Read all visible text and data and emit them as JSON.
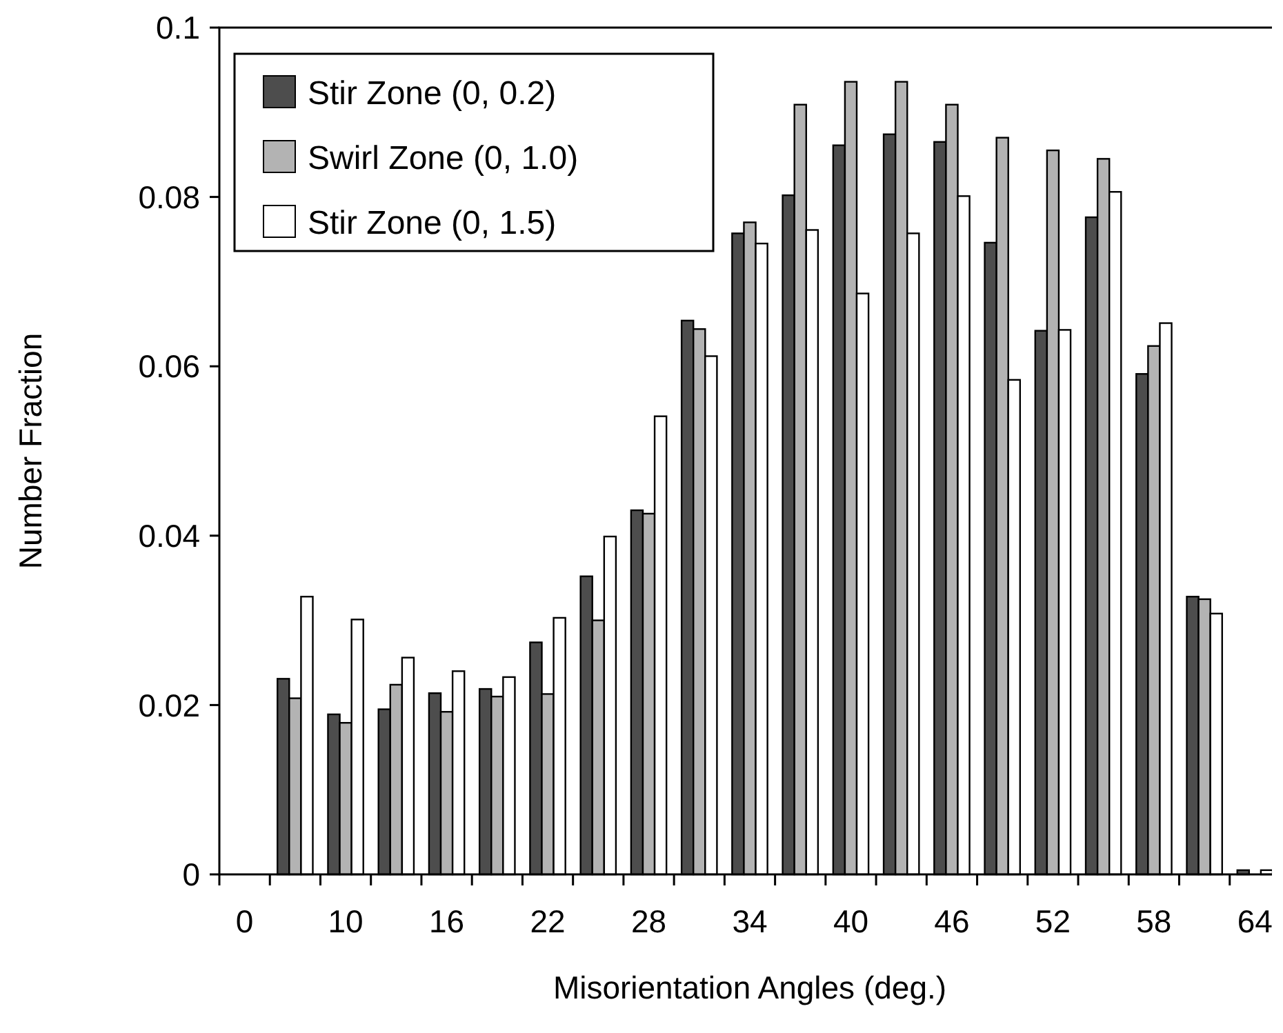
{
  "chart_data": {
    "type": "bar",
    "xlabel": "Misorientation Angles (deg.)",
    "ylabel": "Number Fraction",
    "categories": [
      "0",
      null,
      "10",
      null,
      "16",
      null,
      "22",
      null,
      "28",
      null,
      "34",
      null,
      "40",
      null,
      "46",
      null,
      "52",
      null,
      "58",
      null,
      "64"
    ],
    "series": [
      {
        "name": "Stir Zone (0, 0.2)",
        "color": "#4d4d4d",
        "values": [
          null,
          0.0231,
          0.0189,
          0.0195,
          0.0214,
          0.0219,
          0.0274,
          0.0352,
          0.043,
          0.0654,
          0.0757,
          0.0802,
          0.0861,
          0.0874,
          0.0865,
          0.0746,
          0.0642,
          0.0776,
          0.0591,
          0.0328,
          0.0005
        ]
      },
      {
        "name": "Swirl Zone (0, 1.0)",
        "color": "#b3b3b3",
        "values": [
          null,
          0.0208,
          0.0179,
          0.0224,
          0.0192,
          0.021,
          0.0213,
          0.03,
          0.0426,
          0.0644,
          0.077,
          0.0909,
          0.0936,
          0.0936,
          0.0909,
          0.087,
          0.0855,
          0.0845,
          0.0624,
          0.0325,
          null
        ]
      },
      {
        "name": "Stir Zone (0, 1.5)",
        "color": "#ffffff",
        "values": [
          null,
          0.0328,
          0.0301,
          0.0256,
          0.024,
          0.0233,
          0.0303,
          0.0399,
          0.0541,
          0.0612,
          0.0745,
          0.0761,
          0.0686,
          0.0757,
          0.0801,
          0.0584,
          0.0643,
          0.0806,
          0.0651,
          0.0308,
          0.0005
        ]
      }
    ],
    "ylim": [
      0,
      0.1
    ],
    "yticks": [
      0,
      0.02,
      0.04,
      0.06,
      0.08,
      0.1
    ],
    "grid": false,
    "legend": "top left"
  }
}
